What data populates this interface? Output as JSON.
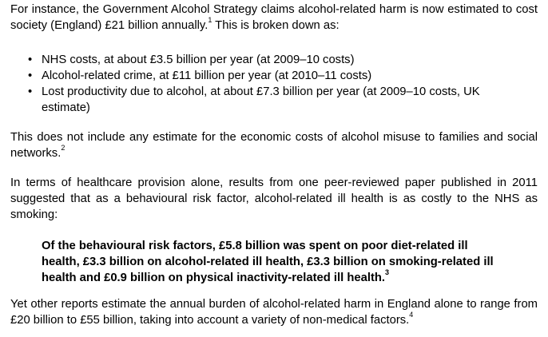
{
  "para1": {
    "text_before": "For instance, the Government Alcohol Strategy claims alcohol-related harm is now estimated to cost society (England) £21 billion annually.",
    "ref": "1",
    "text_after": " This is broken down as:"
  },
  "bullets": [
    {
      "symbol": "•",
      "text": "NHS costs, at about £3.5 billion per year (at 2009–10 costs)"
    },
    {
      "symbol": "•",
      "text": "Alcohol-related crime, at £11 billion per year (at 2010–11 costs)"
    },
    {
      "symbol": "•",
      "text": "Lost productivity due to alcohol, at about £7.3 billion per year (at 2009–10 costs, UK estimate)"
    }
  ],
  "para2": {
    "text": "This does not include any estimate for the economic costs of alcohol misuse to families and social networks.",
    "ref": "2"
  },
  "para3": {
    "text": "In terms of healthcare provision alone, results from one peer-reviewed paper published in 2011 suggested that as a behavioural risk factor, alcohol-related ill health is as costly to the NHS as smoking:"
  },
  "quote": {
    "text": "Of the behavioural risk factors, £5.8 billion was spent on poor diet-related ill health, £3.3 billion on alcohol-related ill health, £3.3 billion on smoking-related ill health and £0.9 billion on physical inactivity-related ill health.",
    "ref": "3"
  },
  "para4": {
    "text": "Yet other reports estimate the annual burden of alcohol-related harm in England alone to range from £20 billion to £55 billion, taking into account a variety of non-medical factors.",
    "ref": "4"
  }
}
